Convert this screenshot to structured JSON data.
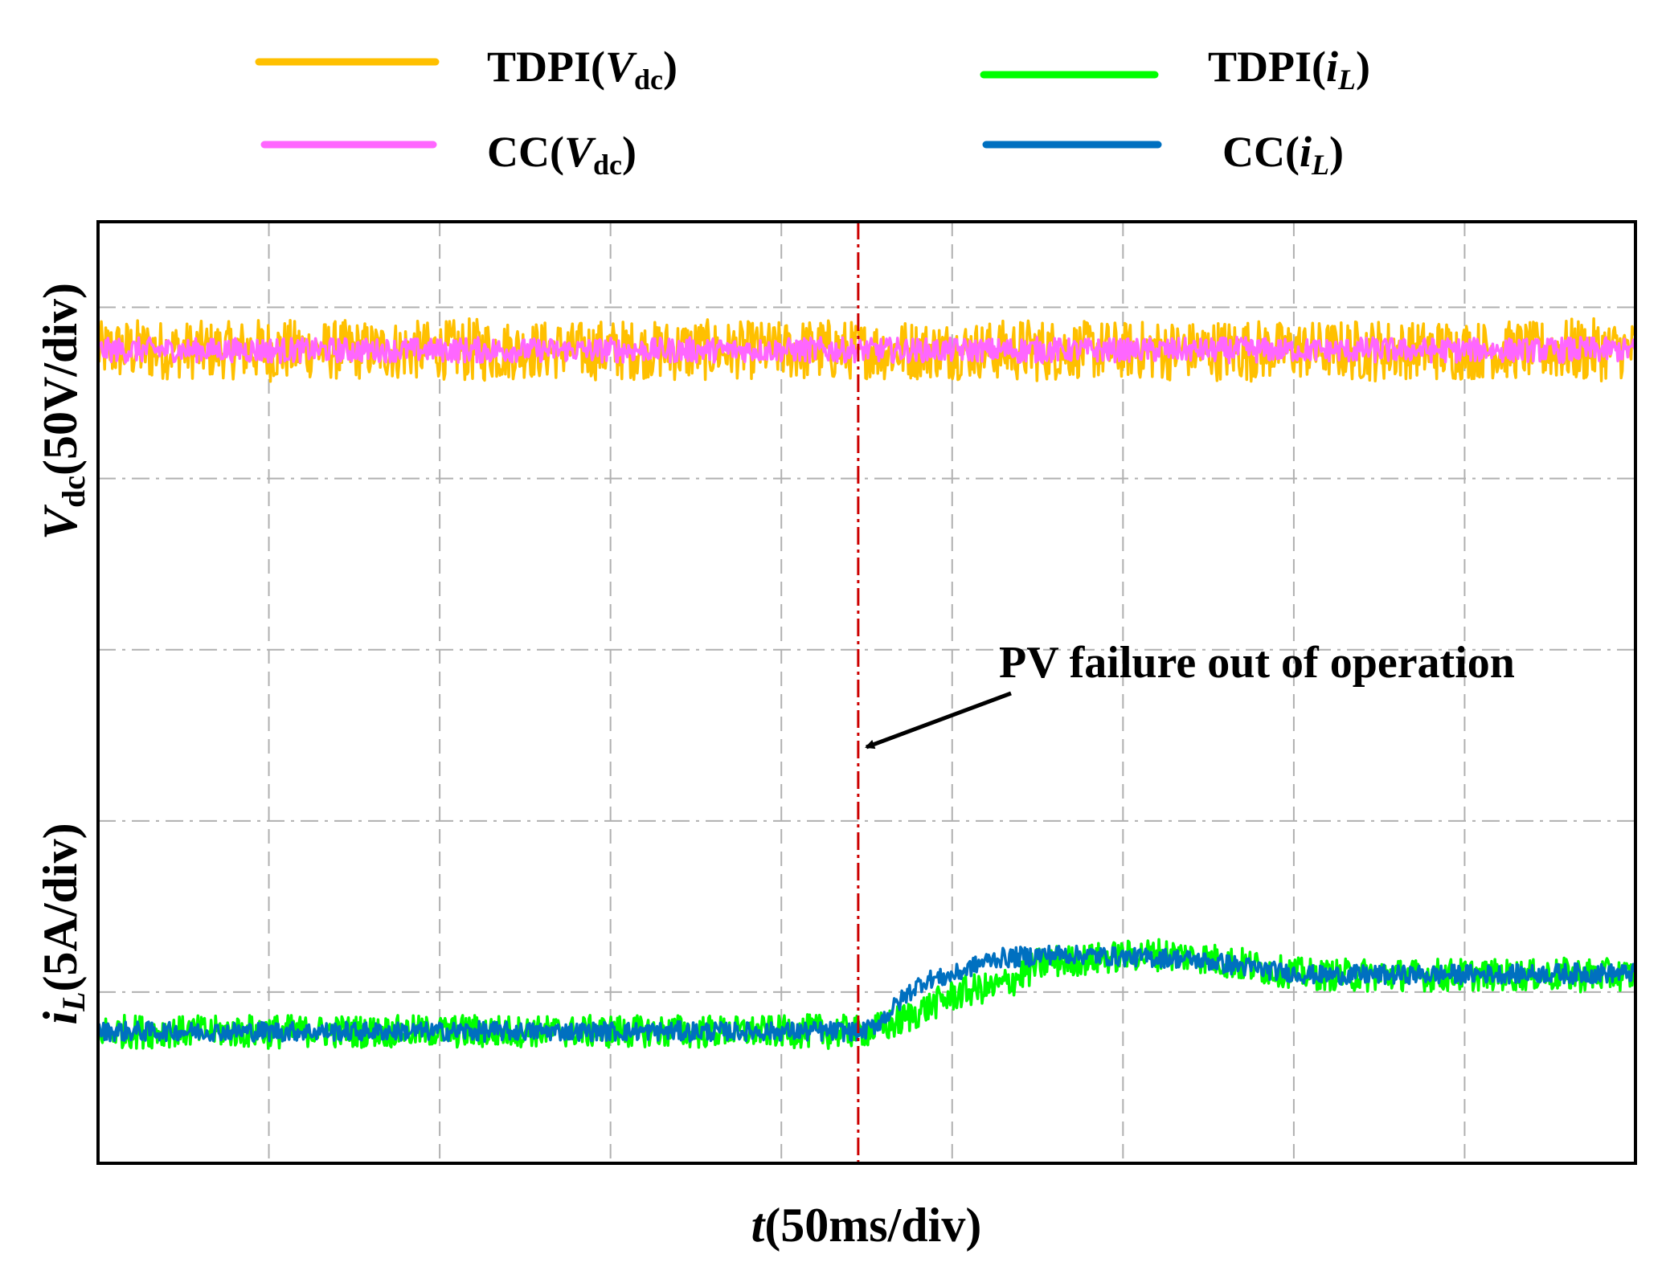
{
  "chart_data": {
    "type": "line",
    "title": "",
    "xlabel": {
      "symbol": "t",
      "unit": "(50ms/div)"
    },
    "ylabel_top": {
      "symbol": "V",
      "sub": "dc",
      "unit": "(50V/div)"
    },
    "ylabel_bottom": {
      "symbol": "i",
      "sub": "L",
      "unit": "(5A/div)"
    },
    "x_divisions": 9,
    "y_divisions": 5.5,
    "grid": true,
    "legend_placement": "top",
    "legend": [
      {
        "prefix": "TDPI(",
        "symbol": "V",
        "sub": "dc",
        "suffix": ")",
        "series": "TDPI_Vdc"
      },
      {
        "prefix": "TDPI(",
        "symbol": "i",
        "sub": "L",
        "suffix": ")",
        "series": "TDPI_iL"
      },
      {
        "prefix": "CC(",
        "symbol": "V",
        "sub": "dc",
        "suffix": ")",
        "series": "CC_Vdc"
      },
      {
        "prefix": "CC(",
        "symbol": "i",
        "sub": "L",
        "suffix": ")",
        "series": "CC_iL"
      }
    ],
    "event": {
      "x_div": 4.45,
      "label": "PV failure out of operation",
      "color": "#cc0000"
    },
    "series": [
      {
        "name": "TDPI_Vdc",
        "color": "#ffc000",
        "x_div": [
          0,
          9
        ],
        "level_div": [
          4.75,
          4.75
        ],
        "ripple_div": 0.22
      },
      {
        "name": "CC_Vdc",
        "color": "#ff66ff",
        "x_div": [
          0,
          9
        ],
        "level_div": [
          4.75,
          4.75
        ],
        "ripple_div": 0.09
      },
      {
        "name": "TDPI_iL",
        "color": "#00ff00",
        "x_div": [
          0,
          4.45,
          5.2,
          5.6,
          6.2,
          7.2,
          9
        ],
        "level_div": [
          0.77,
          0.77,
          1.02,
          1.18,
          1.22,
          1.1,
          1.1
        ],
        "ripple_div": 0.12
      },
      {
        "name": "CC_iL",
        "color": "#0070c0",
        "x_div": [
          0,
          4.45,
          4.9,
          5.3,
          5.6,
          6.2,
          7.2,
          9
        ],
        "level_div": [
          0.77,
          0.77,
          1.08,
          1.2,
          1.22,
          1.2,
          1.1,
          1.11
        ],
        "ripple_div": 0.07
      }
    ]
  }
}
